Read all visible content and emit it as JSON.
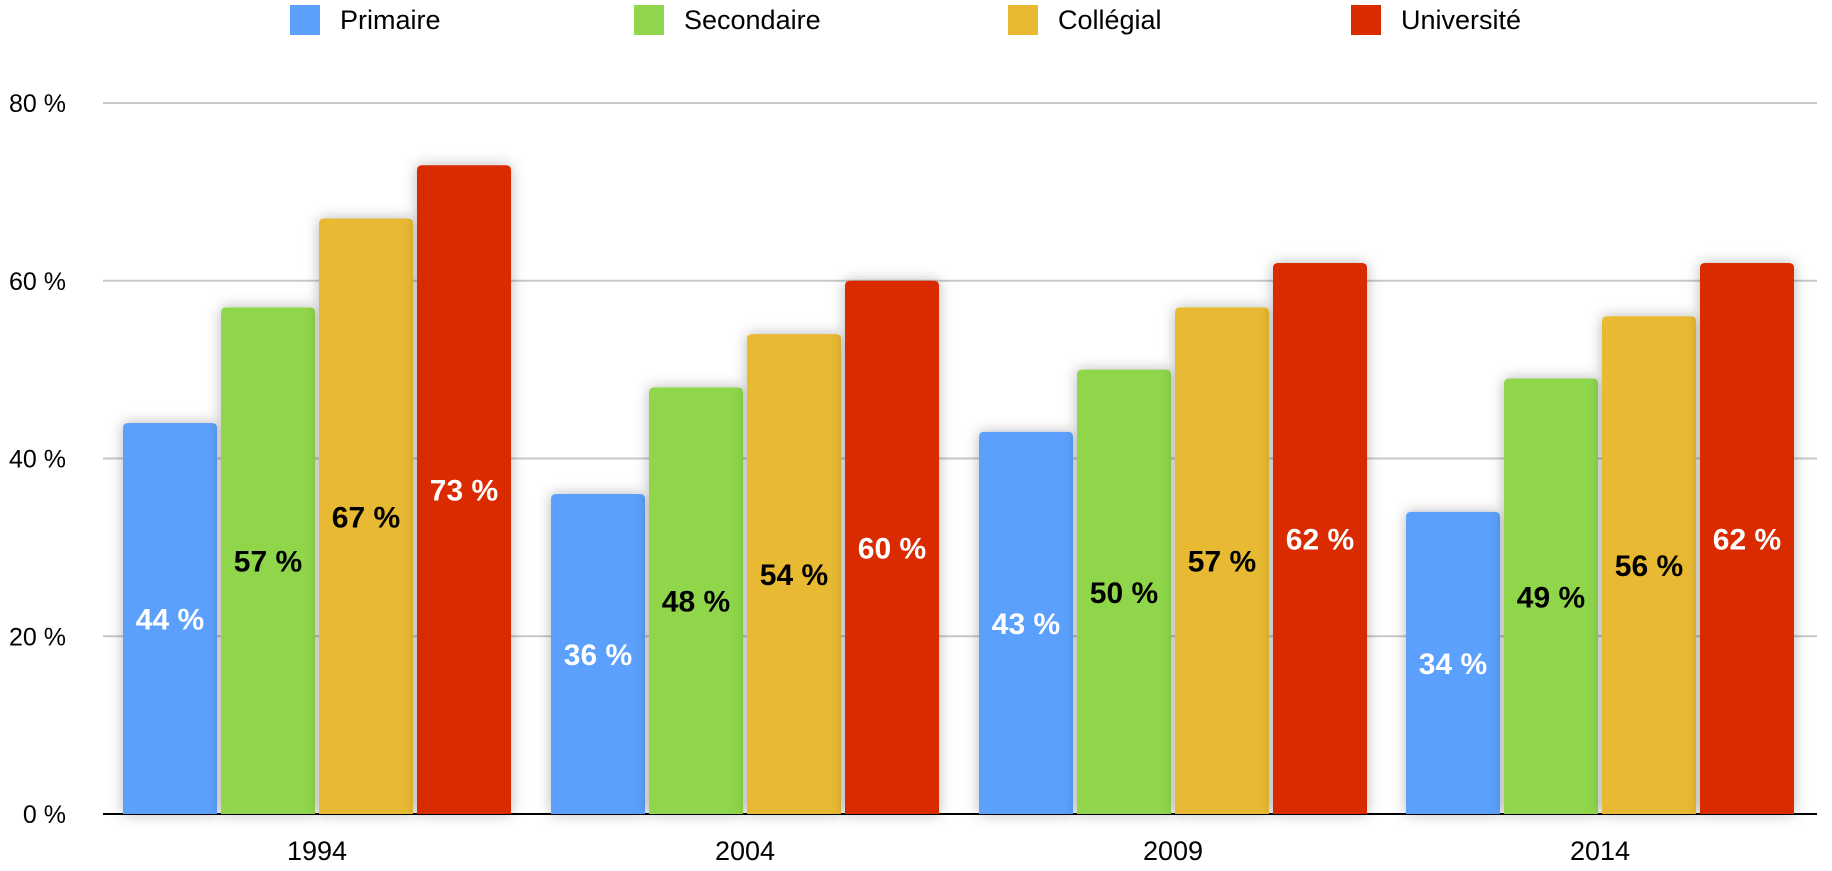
{
  "chart_data": {
    "type": "bar",
    "title": "",
    "xlabel": "",
    "ylabel": "",
    "categories": [
      "1994",
      "2004",
      "2009",
      "2014"
    ],
    "series": [
      {
        "name": "Primaire",
        "color": "#5aa0fc",
        "label_color": "#ffffff",
        "values": [
          44,
          36,
          43,
          34
        ]
      },
      {
        "name": "Secondaire",
        "color": "#8fd64c",
        "label_color": "#000000",
        "values": [
          57,
          48,
          50,
          49
        ]
      },
      {
        "name": "Collégial",
        "color": "#e8b931",
        "label_color": "#000000",
        "values": [
          67,
          54,
          57,
          56
        ]
      },
      {
        "name": "Université",
        "color": "#d92a00",
        "label_color": "#ffffff",
        "values": [
          73,
          60,
          62,
          62
        ]
      }
    ],
    "value_labels": [
      [
        "44 %",
        "36 %",
        "43 %",
        "34 %"
      ],
      [
        "57 %",
        "48 %",
        "50 %",
        "49 %"
      ],
      [
        "67 %",
        "54 %",
        "57 %",
        "56 %"
      ],
      [
        "73 %",
        "60 %",
        "62 %",
        "62 %"
      ]
    ],
    "y_ticks": [
      0,
      20,
      40,
      60,
      80
    ],
    "y_tick_labels": [
      "0 %",
      "20 %",
      "40 %",
      "60 %",
      "80 %"
    ],
    "ylim": [
      0,
      80
    ],
    "grid": true,
    "legend_position": "top"
  }
}
